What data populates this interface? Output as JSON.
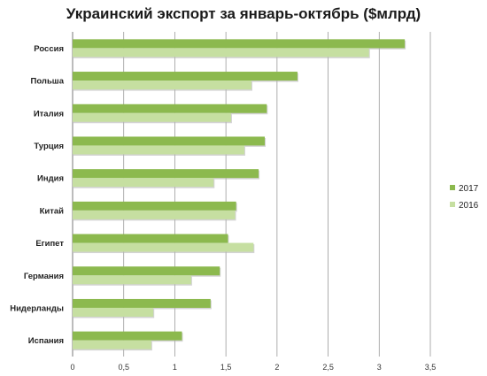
{
  "colors": {
    "series_2017": "#8cb94e",
    "series_2016": "#c6dfa1",
    "shadow": "#b5b5b5"
  },
  "chart_data": {
    "type": "bar",
    "orientation": "horizontal",
    "title": "Украинский экспорт за январь-октябрь ($млрд)",
    "xlabel": "",
    "ylabel": "",
    "xlim": [
      0,
      3.5
    ],
    "x_ticks": [
      0,
      0.5,
      1,
      1.5,
      2,
      2.5,
      3,
      3.5
    ],
    "x_tick_labels": [
      "0",
      "0,5",
      "1",
      "1,5",
      "2",
      "2,5",
      "3",
      "3,5"
    ],
    "grid": "vertical",
    "legend_position": "right",
    "categories": [
      "Россия",
      "Польша",
      "Италия",
      "Турция",
      "Индия",
      "Китай",
      "Египет",
      "Германия",
      "Нидерланды",
      "Испания"
    ],
    "series": [
      {
        "name": "2017",
        "values": [
          3.25,
          2.2,
          1.9,
          1.88,
          1.82,
          1.6,
          1.52,
          1.44,
          1.35,
          1.07
        ]
      },
      {
        "name": "2016",
        "values": [
          2.9,
          1.75,
          1.55,
          1.68,
          1.38,
          1.59,
          1.77,
          1.16,
          0.79,
          0.77
        ]
      }
    ]
  }
}
